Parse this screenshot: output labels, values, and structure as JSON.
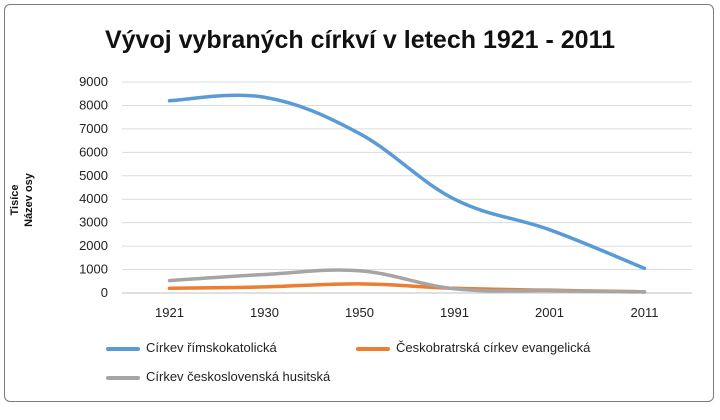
{
  "chart_data": {
    "type": "line",
    "title": "Vývoj vybraných církví v letech 1921 - 2011",
    "xlabel": "",
    "ylabel_lines": [
      "Tisíce",
      "Název osy"
    ],
    "categories": [
      "1921",
      "1930",
      "1950",
      "1991",
      "2001",
      "2011"
    ],
    "ylim": [
      0,
      9000
    ],
    "yticks": [
      0,
      1000,
      2000,
      3000,
      4000,
      5000,
      6000,
      7000,
      8000,
      9000
    ],
    "grid": true,
    "smooth": true,
    "series": [
      {
        "name": "Církev římskokatolická",
        "color": "#5b9bd5",
        "values": [
          8200,
          8350,
          6800,
          4000,
          2700,
          1050
        ]
      },
      {
        "name": "Českobratrská církev evangelická",
        "color": "#ed7d31",
        "values": [
          200,
          260,
          390,
          200,
          120,
          50
        ]
      },
      {
        "name": "Církev československá husitská",
        "color": "#a5a5a5",
        "values": [
          530,
          790,
          950,
          180,
          100,
          40
        ]
      }
    ]
  }
}
